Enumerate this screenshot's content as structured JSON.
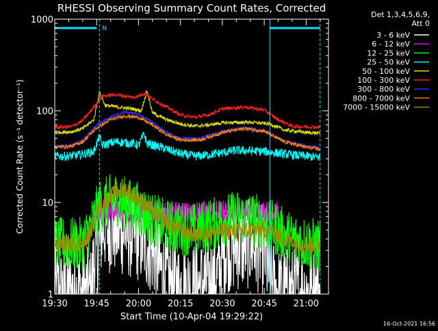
{
  "chart_data": {
    "type": "line",
    "title": "RHESSI Observing Summary Count Rates, Corrected",
    "ylabel": "Corrected Count Rate (s⁻¹ detector⁻¹)",
    "xlabel": "Start Time (10-Apr-04 19:29:22)",
    "y_scale": "log",
    "ylim": [
      1,
      1000
    ],
    "xlim": [
      "19:30",
      "21:08"
    ],
    "y_ticks": [
      {
        "value": 1,
        "label": "1"
      },
      {
        "value": 10,
        "label": "10"
      },
      {
        "value": 100,
        "label": "100"
      },
      {
        "value": 1000,
        "label": "1000"
      }
    ],
    "x_ticks": [
      {
        "value": "19:30",
        "label": "19:30"
      },
      {
        "value": "19:45",
        "label": "19:45"
      },
      {
        "value": "20:00",
        "label": "20:00"
      },
      {
        "value": "20:15",
        "label": "20:15"
      },
      {
        "value": "20:30",
        "label": "20:30"
      },
      {
        "value": "20:45",
        "label": "20:45"
      },
      {
        "value": "21:00",
        "label": "21:00"
      }
    ],
    "legend_header": [
      "Det 1,3,4,5,6,9,",
      "Att 0"
    ],
    "legend_position": "right",
    "marker_label": "N",
    "night_segments": [
      [
        "19:30",
        "19:45"
      ],
      [
        "20:47",
        "21:05"
      ]
    ],
    "vertical_markers": [
      {
        "time": "19:30",
        "style": "solid"
      },
      {
        "time": "19:46",
        "style": "dashed"
      },
      {
        "time": "20:47",
        "style": "solid"
      },
      {
        "time": "21:05",
        "style": "dashed"
      }
    ],
    "series": [
      {
        "name": "3 - 6 keV",
        "color": "#ffffff",
        "noise": 0.5,
        "points": [
          [
            "19:30",
            1.05
          ],
          [
            "19:43",
            1.05
          ],
          [
            "19:44",
            2.2
          ],
          [
            "19:46",
            3.4
          ],
          [
            "19:47",
            5.5
          ],
          [
            "19:50",
            5.2
          ],
          [
            "19:55",
            4.8
          ],
          [
            "20:00",
            4.2
          ],
          [
            "20:05",
            3.0
          ],
          [
            "20:08",
            1.8
          ],
          [
            "20:12",
            1.2
          ],
          [
            "20:20",
            1.2
          ],
          [
            "20:28",
            1.5
          ],
          [
            "20:31",
            3.2
          ],
          [
            "20:40",
            3.5
          ],
          [
            "20:45",
            3.0
          ],
          [
            "20:47",
            1.5
          ],
          [
            "20:50",
            1.05
          ],
          [
            "21:05",
            1.05
          ]
        ]
      },
      {
        "name": "6 - 12 keV",
        "color": "#ff00ff",
        "noise": 0.12,
        "points": [
          [
            "19:44",
            6.5
          ],
          [
            "19:46",
            8.2
          ],
          [
            "19:55",
            8.0
          ],
          [
            "20:05",
            8.0
          ],
          [
            "20:20",
            7.8
          ],
          [
            "20:35",
            8.2
          ],
          [
            "20:45",
            8.0
          ],
          [
            "20:50",
            7.8
          ]
        ]
      },
      {
        "name": "12 - 25 keV",
        "color": "#00ff00",
        "noise": 0.3,
        "points": [
          [
            "19:30",
            3.5
          ],
          [
            "19:40",
            3.5
          ],
          [
            "19:43",
            5.5
          ],
          [
            "19:46",
            9.0
          ],
          [
            "19:52",
            11.0
          ],
          [
            "19:56",
            9.5
          ],
          [
            "20:00",
            8.5
          ],
          [
            "20:05",
            6.5
          ],
          [
            "20:10",
            5.5
          ],
          [
            "20:20",
            5.0
          ],
          [
            "20:28",
            6.0
          ],
          [
            "20:35",
            7.0
          ],
          [
            "20:42",
            6.5
          ],
          [
            "20:50",
            5.0
          ],
          [
            "20:53",
            4.2
          ],
          [
            "21:05",
            3.3
          ]
        ]
      },
      {
        "name": "25 - 50 keV",
        "color": "#00ffff",
        "noise": 0.05,
        "points": [
          [
            "19:30",
            32
          ],
          [
            "19:35",
            32
          ],
          [
            "19:39",
            33
          ],
          [
            "19:44",
            36
          ],
          [
            "19:46",
            52
          ],
          [
            "19:47",
            42
          ],
          [
            "19:52",
            46
          ],
          [
            "19:58",
            44
          ],
          [
            "20:00",
            42
          ],
          [
            "20:02",
            56
          ],
          [
            "20:03",
            44
          ],
          [
            "20:08",
            40
          ],
          [
            "20:15",
            34
          ],
          [
            "20:20",
            32
          ],
          [
            "20:25",
            33
          ],
          [
            "20:35",
            37
          ],
          [
            "20:45",
            36
          ],
          [
            "20:55",
            33
          ],
          [
            "21:05",
            31
          ]
        ]
      },
      {
        "name": "50 - 100 keV",
        "color": "#e0e000",
        "noise": 0.02,
        "points": [
          [
            "19:30",
            58
          ],
          [
            "19:36",
            59
          ],
          [
            "19:40",
            64
          ],
          [
            "19:44",
            80
          ],
          [
            "19:46",
            160
          ],
          [
            "19:48",
            115
          ],
          [
            "19:52",
            110
          ],
          [
            "19:58",
            105
          ],
          [
            "20:01",
            100
          ],
          [
            "20:03",
            165
          ],
          [
            "20:05",
            95
          ],
          [
            "20:10",
            80
          ],
          [
            "20:15",
            72
          ],
          [
            "20:20",
            68
          ],
          [
            "20:25",
            70
          ],
          [
            "20:30",
            74
          ],
          [
            "20:40",
            75
          ],
          [
            "20:47",
            72
          ],
          [
            "20:52",
            62
          ],
          [
            "21:00",
            58
          ],
          [
            "21:05",
            57
          ]
        ]
      },
      {
        "name": "100 - 300 keV",
        "color": "#ff2020",
        "noise": 0.02,
        "points": [
          [
            "19:30",
            66
          ],
          [
            "19:36",
            67
          ],
          [
            "19:40",
            78
          ],
          [
            "19:45",
            120
          ],
          [
            "19:47",
            145
          ],
          [
            "19:52",
            150
          ],
          [
            "19:58",
            140
          ],
          [
            "20:00",
            145
          ],
          [
            "20:02",
            155
          ],
          [
            "20:05",
            135
          ],
          [
            "20:10",
            110
          ],
          [
            "20:15",
            90
          ],
          [
            "20:20",
            85
          ],
          [
            "20:25",
            90
          ],
          [
            "20:30",
            105
          ],
          [
            "20:38",
            110
          ],
          [
            "20:45",
            102
          ],
          [
            "20:50",
            80
          ],
          [
            "20:55",
            68
          ],
          [
            "21:05",
            66
          ]
        ]
      },
      {
        "name": "300 - 800 keV",
        "color": "#3030ff",
        "noise": 0.015,
        "points": [
          [
            "19:30",
            41
          ],
          [
            "19:36",
            42
          ],
          [
            "19:40",
            48
          ],
          [
            "19:45",
            70
          ],
          [
            "19:50",
            85
          ],
          [
            "19:55",
            97
          ],
          [
            "20:00",
            92
          ],
          [
            "20:05",
            75
          ],
          [
            "20:10",
            58
          ],
          [
            "20:15",
            50
          ],
          [
            "20:22",
            50
          ],
          [
            "20:30",
            60
          ],
          [
            "20:38",
            65
          ],
          [
            "20:45",
            60
          ],
          [
            "20:52",
            47
          ],
          [
            "21:00",
            41
          ],
          [
            "21:05",
            40
          ]
        ]
      },
      {
        "name": "800 - 7000 keV",
        "color": "#ff8000",
        "noise": 0.02,
        "points": [
          [
            "19:30",
            40
          ],
          [
            "19:36",
            41
          ],
          [
            "19:40",
            46
          ],
          [
            "19:45",
            65
          ],
          [
            "19:50",
            80
          ],
          [
            "19:55",
            88
          ],
          [
            "20:00",
            85
          ],
          [
            "20:05",
            70
          ],
          [
            "20:10",
            55
          ],
          [
            "20:15",
            48
          ],
          [
            "20:22",
            48
          ],
          [
            "20:30",
            58
          ],
          [
            "20:38",
            64
          ],
          [
            "20:45",
            60
          ],
          [
            "20:52",
            46
          ],
          [
            "21:00",
            40
          ],
          [
            "21:05",
            38
          ]
        ]
      },
      {
        "name": "7000 - 15000 keV",
        "color": "#9a8c00",
        "noise": 0.1,
        "points": [
          [
            "19:30",
            3.5
          ],
          [
            "19:41",
            3.6
          ],
          [
            "19:43",
            5.0
          ],
          [
            "19:46",
            9.0
          ],
          [
            "19:52",
            13.0
          ],
          [
            "19:55",
            14.0
          ],
          [
            "20:00",
            11.0
          ],
          [
            "20:06",
            7.5
          ],
          [
            "20:12",
            5.5
          ],
          [
            "20:20",
            4.5
          ],
          [
            "20:30",
            4.8
          ],
          [
            "20:40",
            5.0
          ],
          [
            "20:47",
            5.0
          ],
          [
            "20:52",
            4.0
          ],
          [
            "21:00",
            3.4
          ],
          [
            "21:05",
            3.4
          ]
        ]
      }
    ]
  },
  "footer_timestamp": "16-Oct-2021 16:56"
}
